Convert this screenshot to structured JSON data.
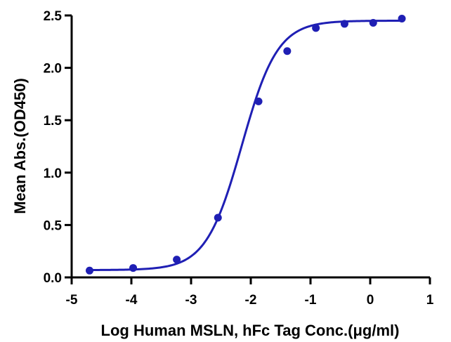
{
  "chart_data": {
    "type": "scatter",
    "title": "",
    "xlabel": "Log Human MSLN, hFc Tag Conc.(μg/ml)",
    "ylabel": "Mean Abs.(OD450)",
    "xlim": [
      -5,
      1
    ],
    "ylim": [
      0,
      2.5
    ],
    "x_ticks": [
      "-5",
      "-4",
      "-3",
      "-2",
      "-1",
      "0",
      "1"
    ],
    "y_ticks": [
      "0.0",
      "0.5",
      "1.0",
      "1.5",
      "2.0",
      "2.5"
    ],
    "grid": false,
    "legend": "none",
    "series": [
      {
        "points": [
          {
            "x": -4.7,
            "y": 0.065
          },
          {
            "x": -3.97,
            "y": 0.09
          },
          {
            "x": -3.24,
            "y": 0.17
          },
          {
            "x": -2.55,
            "y": 0.57
          },
          {
            "x": -1.87,
            "y": 1.68
          },
          {
            "x": -1.39,
            "y": 2.16
          },
          {
            "x": -0.91,
            "y": 2.38
          },
          {
            "x": -0.43,
            "y": 2.42
          },
          {
            "x": 0.05,
            "y": 2.43
          },
          {
            "x": 0.53,
            "y": 2.47
          }
        ],
        "fit": {
          "bottom": 0.07,
          "top": 2.45,
          "logEC50": -2.15,
          "hill": 1.45
        }
      }
    ],
    "colors": {
      "series": "#1f1fb4",
      "axis": "#000000"
    }
  }
}
